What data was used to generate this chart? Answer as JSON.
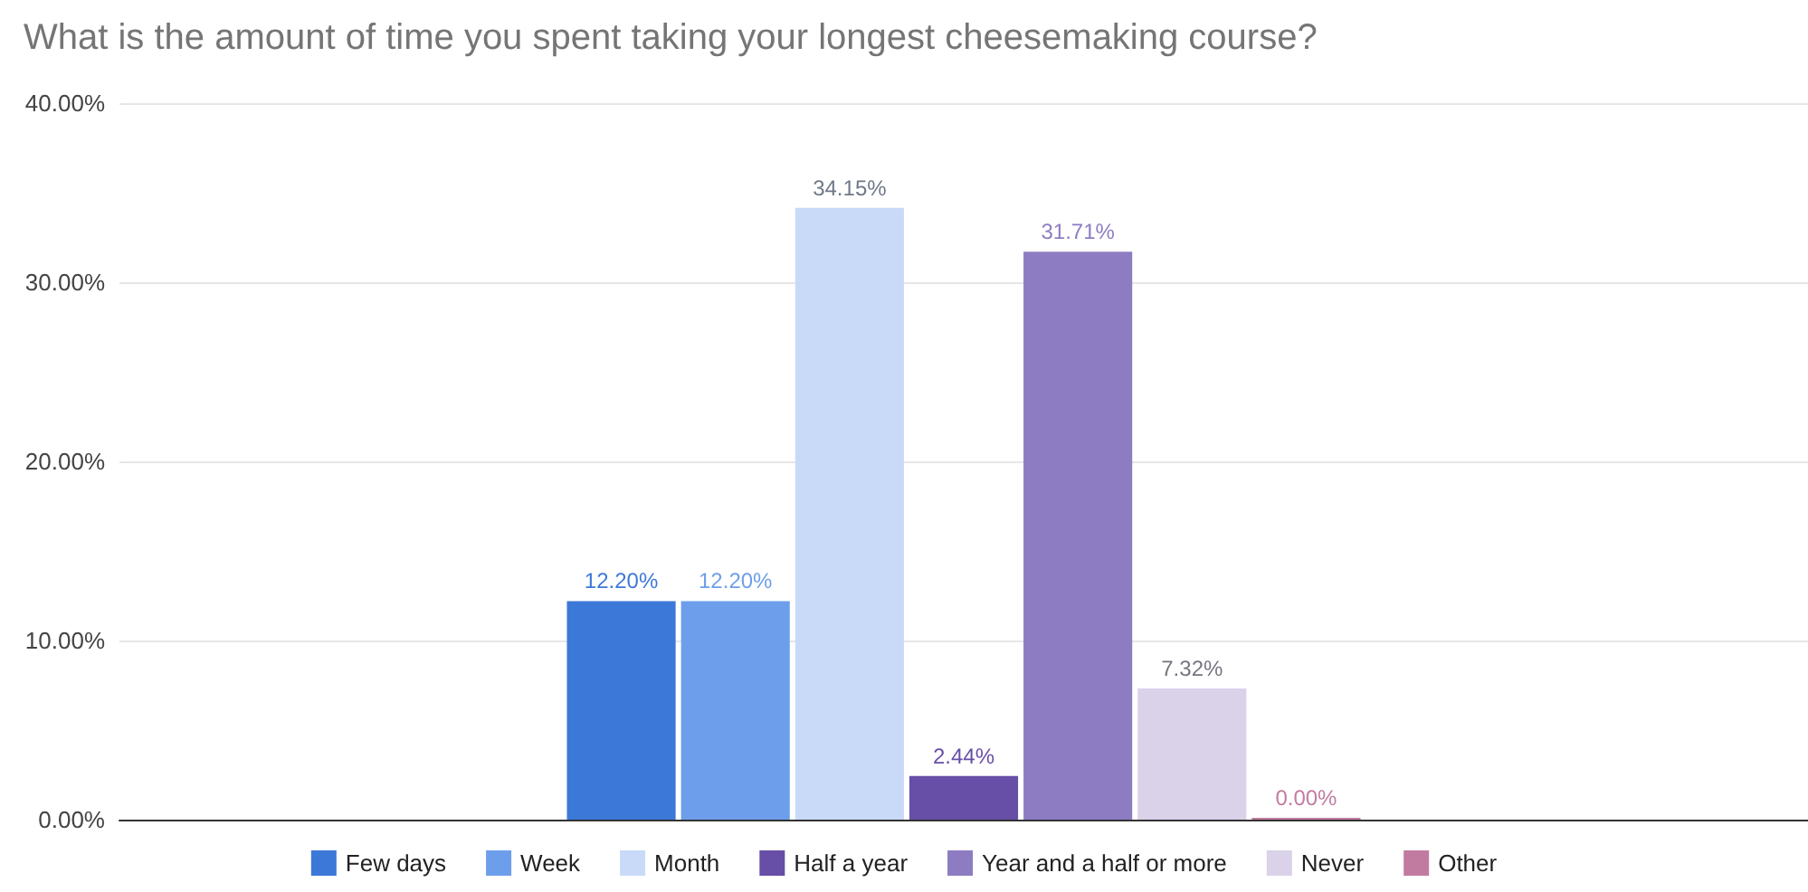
{
  "chart_data": {
    "type": "bar",
    "title": "What is the amount of time you spent taking your longest cheesemaking course?",
    "categories": [
      null
    ],
    "series": [
      {
        "name": "Few days",
        "color": "#3c78d8",
        "values": [
          12.2
        ],
        "value_labels": [
          "12.20%"
        ]
      },
      {
        "name": "Week",
        "color": "#6d9eeb",
        "values": [
          12.2
        ],
        "value_labels": [
          "12.20%"
        ]
      },
      {
        "name": "Month",
        "color": "#c9daf8",
        "values": [
          34.15
        ],
        "value_labels": [
          "34.15%"
        ]
      },
      {
        "name": "Half a year",
        "color": "#674ea7",
        "values": [
          2.44
        ],
        "value_labels": [
          "2.44%"
        ]
      },
      {
        "name": "Year and a half or more",
        "color": "#8e7cc3",
        "values": [
          31.71
        ],
        "value_labels": [
          "31.71%"
        ]
      },
      {
        "name": "Never",
        "color": "#d9d2e9",
        "values": [
          7.32
        ],
        "value_labels": [
          "7.32%"
        ]
      },
      {
        "name": "Other",
        "color": "#c27ba0",
        "values": [
          0
        ],
        "value_labels": [
          "0.00%"
        ]
      }
    ],
    "ylim": [
      0,
      40
    ],
    "yticks": [
      {
        "value": 0,
        "label": "0.00%"
      },
      {
        "value": 10,
        "label": "10.00%"
      },
      {
        "value": 20,
        "label": "20.00%"
      },
      {
        "value": 30,
        "label": "30.00%"
      },
      {
        "value": 40,
        "label": "40.00%"
      }
    ],
    "grid": "y",
    "legend": "bottom"
  }
}
